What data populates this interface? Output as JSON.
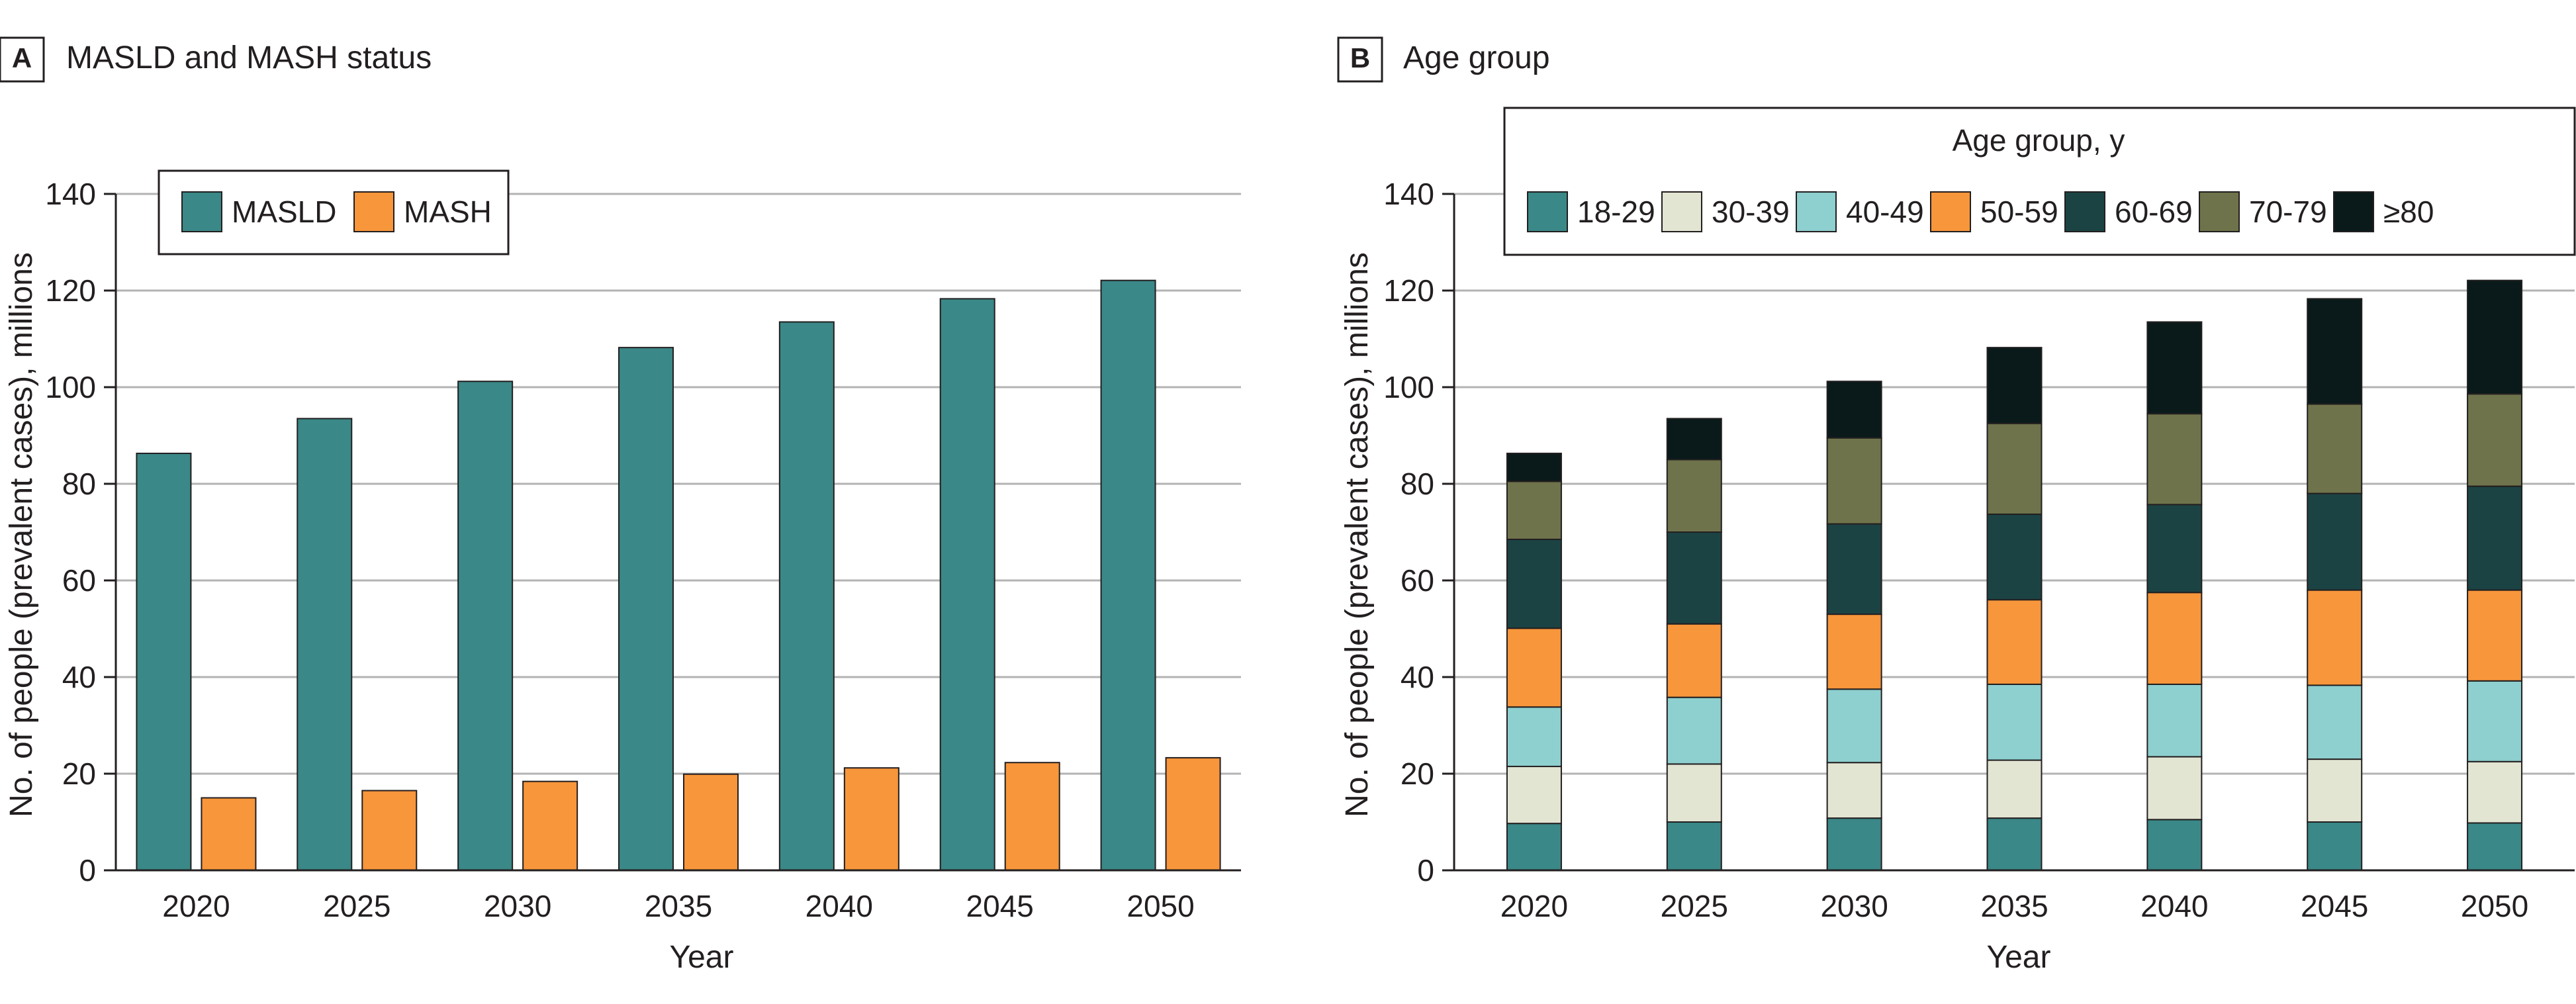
{
  "chart_data": [
    {
      "panel": "A",
      "title": "MASLD and MASH status",
      "type": "bar",
      "categories": [
        "2020",
        "2025",
        "2030",
        "2035",
        "2040",
        "2045",
        "2050"
      ],
      "series": [
        {
          "name": "MASLD",
          "color": "#3a8887",
          "values": [
            86.3,
            93.5,
            101.2,
            108.2,
            113.5,
            118.3,
            122.1
          ]
        },
        {
          "name": "MASH",
          "color": "#f7963b",
          "values": [
            15.0,
            16.5,
            18.4,
            19.9,
            21.2,
            22.3,
            23.3
          ]
        }
      ],
      "xlabel": "Year",
      "ylabel": "No. of people (prevalent cases), millions",
      "ylim": [
        0,
        140
      ],
      "yticks": [
        "0",
        "20",
        "40",
        "60",
        "80",
        "100",
        "120",
        "140"
      ],
      "grid": true,
      "legend": {
        "position": "top-left"
      }
    },
    {
      "panel": "B",
      "title": "Age group",
      "type": "bar",
      "stacked": true,
      "categories": [
        "2020",
        "2025",
        "2030",
        "2035",
        "2040",
        "2045",
        "2050"
      ],
      "series": [
        {
          "name": "18-29",
          "color": "#3a8887",
          "values": [
            9.7,
            10.0,
            10.8,
            10.8,
            10.5,
            10.0,
            9.8
          ]
        },
        {
          "name": "30-39",
          "color": "#e3e5d3",
          "values": [
            11.8,
            12.0,
            11.5,
            12.0,
            13.0,
            13.0,
            12.7
          ]
        },
        {
          "name": "40-49",
          "color": "#8ecfcf",
          "values": [
            12.3,
            13.8,
            15.2,
            15.7,
            15.0,
            15.3,
            16.7
          ]
        },
        {
          "name": "50-59",
          "color": "#f7963b",
          "values": [
            16.3,
            15.2,
            15.5,
            17.5,
            19.0,
            19.7,
            18.8
          ]
        },
        {
          "name": "60-69",
          "color": "#1c4343",
          "values": [
            18.4,
            19.0,
            18.7,
            17.7,
            18.2,
            20.0,
            21.5
          ]
        },
        {
          "name": "70-79",
          "color": "#6e734b",
          "values": [
            12.0,
            15.0,
            17.8,
            18.8,
            18.8,
            18.5,
            19.1
          ]
        },
        {
          "name": "≥80",
          "color": "#0a1a1a",
          "values": [
            5.8,
            8.5,
            11.7,
            15.7,
            19.0,
            21.8,
            23.5
          ]
        }
      ],
      "xlabel": "Year",
      "ylabel": "No. of people (prevalent cases), millions",
      "ylim": [
        0,
        140
      ],
      "yticks": [
        "0",
        "20",
        "40",
        "60",
        "80",
        "100",
        "120",
        "140"
      ],
      "grid": true,
      "legend": {
        "title": "Age group, y",
        "position": "top"
      }
    }
  ]
}
